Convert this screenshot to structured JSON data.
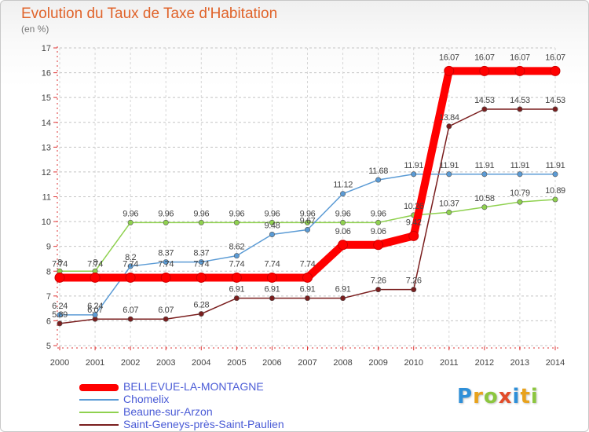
{
  "title": "Evolution du Taux de Taxe d'Habitation",
  "unit_label": "(en %)",
  "logo_text": "Proxiti",
  "chart_data": {
    "type": "line",
    "title": "Evolution du Taux de Taxe d'Habitation",
    "ylabel": "(en %)",
    "xlabel": "",
    "x": [
      "2000",
      "2001",
      "2002",
      "2003",
      "2004",
      "2005",
      "2006",
      "2007",
      "2008",
      "2009",
      "2010",
      "2011",
      "2012",
      "2013",
      "2014"
    ],
    "ylim": [
      5,
      17
    ],
    "yticks": [
      5,
      6,
      7,
      8,
      9,
      10,
      11,
      12,
      13,
      14,
      15,
      16,
      17
    ],
    "grid": "horizontal dashed",
    "legend_position": "bottom-left",
    "series": [
      {
        "name": "BELLEVUE-LA-MONTAGNE",
        "color": "#ff0000",
        "values": [
          7.74,
          7.74,
          7.74,
          7.74,
          7.74,
          7.74,
          7.74,
          7.74,
          9.06,
          9.06,
          9.42,
          16.07,
          16.07,
          16.07,
          16.07
        ],
        "labels": [
          "7.74",
          "7.74",
          "7.74",
          "7.74",
          "7.74",
          "7.74",
          "7.74",
          "7.74",
          "9.06",
          "9.06",
          "9.42",
          "16.07",
          "16.07",
          "16.07",
          "16.07"
        ]
      },
      {
        "name": "Chomelix",
        "color": "#5b9bd5",
        "values": [
          6.24,
          6.24,
          8.2,
          8.37,
          8.37,
          8.62,
          9.48,
          9.67,
          11.12,
          11.68,
          11.91,
          11.91,
          11.91,
          11.91,
          11.91
        ],
        "labels": [
          "6.24",
          "6.24",
          "8.2",
          "8.37",
          "8.37",
          "8.62",
          "9.48",
          "9.67",
          "11.12",
          "11.68",
          "11.91",
          "11.91",
          "11.91",
          "11.91",
          "11.91"
        ]
      },
      {
        "name": "Beaune-sur-Arzon",
        "color": "#8fd14f",
        "values": [
          8,
          8,
          9.96,
          9.96,
          9.96,
          9.96,
          9.96,
          9.96,
          9.96,
          9.96,
          10.26,
          10.37,
          10.58,
          10.79,
          10.89
        ],
        "labels": [
          "8",
          "8",
          "9.96",
          "9.96",
          "9.96",
          "9.96",
          "9.96",
          "9.96",
          "9.96",
          "9.96",
          "10.26",
          "10.37",
          "10.58",
          "10.79",
          "10.89"
        ]
      },
      {
        "name": "Saint-Geneys-près-Saint-Paulien",
        "color": "#7a1e1e",
        "values": [
          5.89,
          6.07,
          6.07,
          6.07,
          6.28,
          6.91,
          6.91,
          6.91,
          6.91,
          7.26,
          7.26,
          13.84,
          14.53,
          14.53,
          14.53
        ],
        "labels": [
          "5.89",
          "6.07",
          "6.07",
          "6.07",
          "6.28",
          "6.91",
          "6.91",
          "6.91",
          "6.91",
          "7.26",
          "7.26",
          "13.84",
          "14.53",
          "14.53",
          "14.53"
        ]
      }
    ]
  }
}
